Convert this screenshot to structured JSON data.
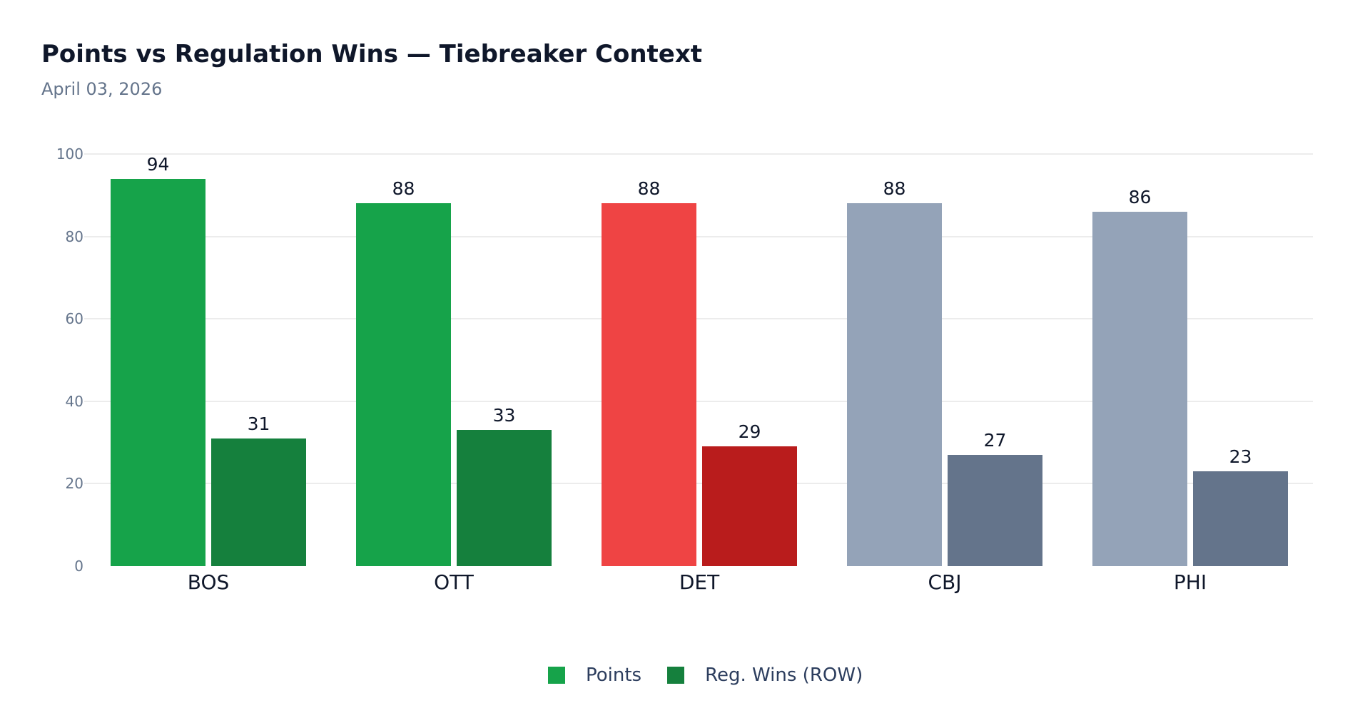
{
  "header": {
    "title": "Points vs Regulation Wins — Tiebreaker Context",
    "subtitle": "April 03, 2026"
  },
  "legend": {
    "items": [
      {
        "label": "Points",
        "color": "#16a34a"
      },
      {
        "label": "Reg. Wins (ROW)",
        "color": "#15803d"
      }
    ]
  },
  "colors": {
    "clinched_points": "#16a34a",
    "clinched_row": "#15803d",
    "highlight_points": "#ef4444",
    "highlight_row": "#b91c1c",
    "other_points": "#94a3b8",
    "other_row": "#64748b",
    "gridline": "#ececec",
    "axis_text": "#64748b",
    "title_text": "#0f172a"
  },
  "chart_data": {
    "type": "bar",
    "title": "Points vs Regulation Wins — Tiebreaker Context",
    "subtitle": "April 03, 2026",
    "xlabel": "",
    "ylabel": "",
    "categories": [
      "BOS",
      "OTT",
      "DET",
      "CBJ",
      "PHI"
    ],
    "series": [
      {
        "name": "Points",
        "values": [
          94,
          88,
          88,
          88,
          86
        ]
      },
      {
        "name": "Reg. Wins (ROW)",
        "values": [
          31,
          33,
          29,
          27,
          23
        ]
      }
    ],
    "bar_colors": {
      "Points": [
        "#16a34a",
        "#16a34a",
        "#ef4444",
        "#94a3b8",
        "#94a3b8"
      ],
      "Reg. Wins (ROW)": [
        "#15803d",
        "#15803d",
        "#b91c1c",
        "#64748b",
        "#64748b"
      ]
    },
    "ylim": [
      0,
      100
    ],
    "yticks": [
      0,
      20,
      40,
      60,
      80,
      100
    ],
    "grid": true,
    "data_labels": true,
    "legend_position": "bottom"
  }
}
